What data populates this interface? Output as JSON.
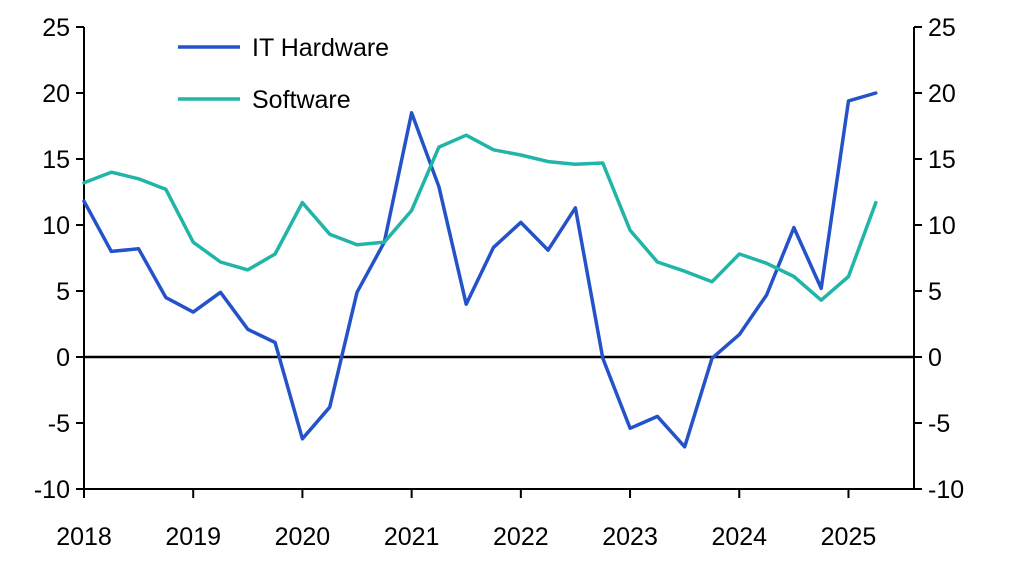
{
  "chart_data": {
    "type": "line",
    "title": "",
    "xlabel": "",
    "ylabel": "",
    "ylabel_right": "",
    "ylim": [
      -10,
      25
    ],
    "yticks": [
      -10,
      -5,
      0,
      5,
      10,
      15,
      20,
      25
    ],
    "ytick_labels": [
      "-10",
      "-5",
      "0",
      "5",
      "10",
      "15",
      "20",
      "25"
    ],
    "xlim": [
      2018.0,
      2025.6
    ],
    "xticks": [
      2018,
      2019,
      2020,
      2021,
      2022,
      2023,
      2024,
      2025
    ],
    "xtick_labels": [
      "2018",
      "2019",
      "2020",
      "2021",
      "2022",
      "2023",
      "2024",
      "2025"
    ],
    "grid": false,
    "zero_line": true,
    "legend_position": "top-left",
    "x": [
      2018.0,
      2018.25,
      2018.5,
      2018.75,
      2019.0,
      2019.25,
      2019.5,
      2019.75,
      2020.0,
      2020.25,
      2020.5,
      2020.75,
      2021.0,
      2021.25,
      2021.5,
      2021.75,
      2022.0,
      2022.25,
      2022.5,
      2022.75,
      2023.0,
      2023.25,
      2023.5,
      2023.75,
      2024.0,
      2024.25,
      2024.5,
      2024.75,
      2025.0,
      2025.25
    ],
    "series": [
      {
        "name": "IT Hardware",
        "color": "#2453c9",
        "values": [
          11.8,
          8.0,
          8.2,
          4.5,
          3.4,
          4.9,
          2.1,
          1.1,
          -6.2,
          -3.8,
          4.9,
          8.7,
          18.5,
          12.9,
          4.0,
          8.3,
          10.2,
          8.1,
          11.3,
          -0.1,
          -5.4,
          -4.5,
          -6.8,
          -0.1,
          1.7,
          4.7,
          9.8,
          5.2,
          19.4,
          20.0
        ]
      },
      {
        "name": "Software",
        "color": "#21b5a8",
        "values": [
          13.2,
          14.0,
          13.5,
          12.7,
          8.7,
          7.2,
          6.6,
          7.8,
          11.7,
          9.3,
          8.5,
          8.7,
          11.1,
          15.9,
          16.8,
          15.7,
          15.3,
          14.8,
          14.6,
          14.7,
          9.6,
          7.2,
          6.5,
          5.7,
          7.8,
          7.1,
          6.1,
          4.3,
          6.1,
          11.7
        ]
      }
    ]
  }
}
